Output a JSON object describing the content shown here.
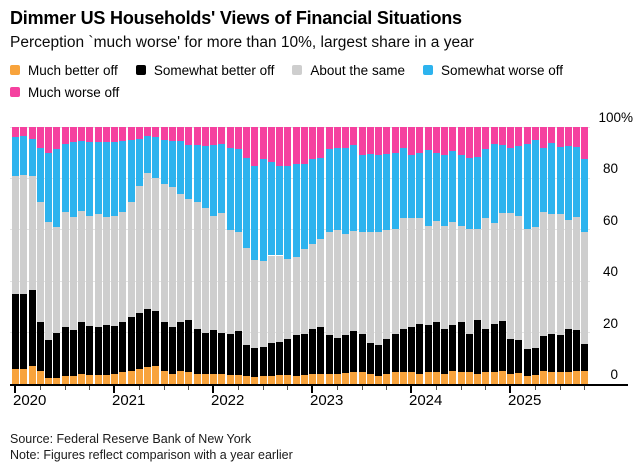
{
  "header": {
    "title": "Dimmer US Households' Views of Financial Situations",
    "subtitle": "Perception `much worse' for more than 10%, largest share in a year"
  },
  "legend": {
    "items": [
      {
        "label": "Much better off",
        "color": "#F8A33C"
      },
      {
        "label": "Somewhat better off",
        "color": "#000000"
      },
      {
        "label": "About the same",
        "color": "#CECECE"
      },
      {
        "label": "Somewhat worse off",
        "color": "#2DB3EE"
      },
      {
        "label": "Much worse off",
        "color": "#F5419F"
      }
    ]
  },
  "chart_data": {
    "type": "bar",
    "stacked": true,
    "unit": "percent share of respondents",
    "title": "Dimmer US Households' Views of Financial Situations",
    "grid": "horizontal",
    "legend_position": "top",
    "ylim": [
      0,
      100
    ],
    "yticks": [
      0,
      20,
      40,
      60,
      80,
      100
    ],
    "ytick_labels": [
      "0",
      "20",
      "40",
      "60",
      "80",
      "100%"
    ],
    "xticks": [
      "2020",
      "2021",
      "2022",
      "2023",
      "2024",
      "2025"
    ],
    "x": [
      "2020-01",
      "2020-02",
      "2020-03",
      "2020-04",
      "2020-05",
      "2020-06",
      "2020-07",
      "2020-08",
      "2020-09",
      "2020-10",
      "2020-11",
      "2020-12",
      "2021-01",
      "2021-02",
      "2021-03",
      "2021-04",
      "2021-05",
      "2021-06",
      "2021-07",
      "2021-08",
      "2021-09",
      "2021-10",
      "2021-11",
      "2021-12",
      "2022-01",
      "2022-02",
      "2022-03",
      "2022-04",
      "2022-05",
      "2022-06",
      "2022-07",
      "2022-08",
      "2022-09",
      "2022-10",
      "2022-11",
      "2022-12",
      "2023-01",
      "2023-02",
      "2023-03",
      "2023-04",
      "2023-05",
      "2023-06",
      "2023-07",
      "2023-08",
      "2023-09",
      "2023-10",
      "2023-11",
      "2023-12",
      "2024-01",
      "2024-02",
      "2024-03",
      "2024-04",
      "2024-05",
      "2024-06",
      "2024-07",
      "2024-08",
      "2024-09",
      "2024-10",
      "2024-11",
      "2024-12",
      "2025-01",
      "2025-02",
      "2025-03",
      "2025-04",
      "2025-05",
      "2025-06",
      "2025-07",
      "2025-08",
      "2025-09",
      "2025-10"
    ],
    "series": [
      {
        "name": "Much better off",
        "color": "#F8A33C",
        "values": [
          6,
          6,
          7,
          5,
          2.5,
          2.5,
          3,
          3,
          4,
          3.5,
          3.5,
          3.5,
          4,
          4.5,
          5,
          6,
          6.5,
          7,
          5,
          4,
          5,
          4.5,
          4,
          4,
          4,
          3.8,
          3.5,
          3.5,
          3,
          2.8,
          3,
          3.2,
          3.5,
          3.5,
          3.3,
          3.5,
          4,
          4,
          4,
          4,
          4.2,
          4.5,
          4.5,
          4,
          3,
          4,
          4.5,
          4.5,
          4.5,
          4,
          4.5,
          4.5,
          4,
          5,
          4.5,
          4.5,
          4,
          4.5,
          4.5,
          5,
          4,
          4.2,
          3.2,
          3.5,
          5,
          4.5,
          4.8,
          4.5,
          5.2,
          5
        ]
      },
      {
        "name": "Somewhat better off",
        "color": "#000000",
        "values": [
          29,
          29,
          29.5,
          19,
          14.5,
          17.5,
          19,
          18,
          20,
          19,
          18.5,
          19.5,
          18.5,
          19.5,
          21,
          21.5,
          22.5,
          21.5,
          19,
          18,
          19,
          20.5,
          17.5,
          16,
          17,
          16.2,
          16,
          17,
          12,
          11.2,
          11.5,
          12.8,
          13,
          14,
          15.7,
          16,
          17.5,
          18,
          15,
          14,
          14.8,
          16,
          15,
          12,
          12,
          13.5,
          15,
          17,
          17.5,
          19.5,
          18.5,
          19.5,
          17.5,
          18,
          19.5,
          15,
          21,
          17,
          19,
          19.5,
          13.5,
          12.8,
          10.3,
          10.5,
          13.5,
          15,
          14.2,
          17,
          15.8,
          10.5
        ]
      },
      {
        "name": "About the same",
        "color": "#CECECE",
        "values": [
          46,
          46.5,
          44.5,
          47,
          46,
          41,
          45,
          44,
          43.5,
          43,
          44,
          42,
          43,
          43,
          45,
          49.5,
          53,
          51.5,
          54,
          54.5,
          50,
          47,
          49.5,
          48.5,
          44.5,
          46.5,
          40.5,
          38.5,
          38,
          34.2,
          33.5,
          34,
          33.5,
          31,
          30.5,
          33,
          33,
          34.5,
          40,
          42,
          39.5,
          39,
          39.5,
          43,
          44,
          42.5,
          41,
          43,
          42.5,
          41,
          38.5,
          39.5,
          40,
          40,
          37.5,
          41,
          35.5,
          43,
          39,
          42,
          49,
          48.5,
          47,
          47,
          48.5,
          46.5,
          47,
          42.5,
          44,
          43.5
        ]
      },
      {
        "name": "Somewhat worse off",
        "color": "#2DB3EE",
        "values": [
          15,
          15,
          14.5,
          21,
          27,
          30.5,
          26.5,
          29,
          27,
          28.5,
          28,
          29,
          28.5,
          27.5,
          24,
          18.5,
          14.5,
          16,
          17,
          18,
          20.5,
          21,
          22,
          24,
          27.5,
          27,
          32,
          32.5,
          35,
          36.8,
          39.5,
          36.5,
          35,
          36.5,
          36,
          33,
          33,
          31.5,
          32.5,
          31.8,
          33.3,
          33.5,
          30,
          30.5,
          30,
          29.5,
          29.5,
          27.5,
          24.5,
          25.5,
          29.5,
          26.5,
          27.5,
          27.5,
          27.5,
          27.5,
          28,
          27,
          31,
          26.5,
          25.5,
          27,
          33,
          33.8,
          24.8,
          27.8,
          26.2,
          28.5,
          27.2,
          28.5
        ]
      },
      {
        "name": "Much worse off",
        "color": "#F5419F",
        "values": [
          4,
          3.5,
          4.5,
          8,
          10,
          8.5,
          6.5,
          6,
          5.5,
          6,
          6,
          6,
          6,
          5.5,
          5,
          4.5,
          3.5,
          4,
          5,
          5.5,
          5.5,
          7,
          7,
          7.5,
          7,
          6.5,
          8,
          8.5,
          12,
          15,
          12.5,
          13.5,
          15,
          15,
          14.5,
          14.5,
          12.5,
          12,
          8.5,
          8.2,
          8.2,
          7,
          11,
          10.5,
          11,
          10.5,
          10,
          8,
          11,
          10,
          9,
          10,
          11,
          9.5,
          11,
          12,
          11.5,
          8.5,
          6.5,
          7,
          8,
          7.5,
          6.5,
          5.2,
          8.2,
          6.2,
          7.8,
          7.5,
          7.8,
          12.5
        ]
      }
    ]
  },
  "footer": {
    "source": "Source: Federal Reserve Bank of New York",
    "note": "Note: Figures reflect comparison with a year earlier"
  }
}
